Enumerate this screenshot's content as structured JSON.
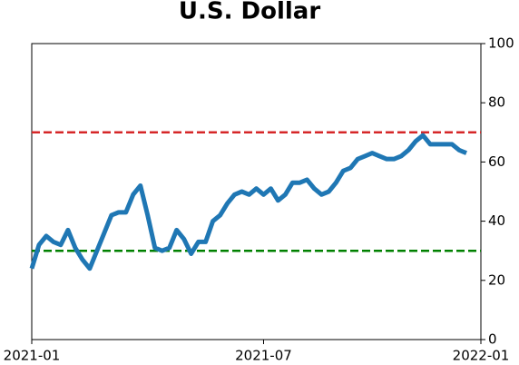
{
  "chart_data": {
    "type": "line",
    "title": "U.S. Dollar",
    "values": [
      24,
      32,
      35,
      33,
      32,
      37,
      31,
      27,
      24,
      30,
      36,
      42,
      43,
      43,
      49,
      52,
      42,
      31,
      30,
      31,
      37,
      34,
      29,
      33,
      33,
      40,
      42,
      46,
      49,
      50,
      49,
      51,
      49,
      51,
      47,
      49,
      53,
      53,
      54,
      51,
      49,
      50,
      53,
      57,
      58,
      61,
      62,
      63,
      62,
      61,
      61,
      62,
      64,
      67,
      69,
      66,
      66,
      66,
      66,
      64,
      63
    ],
    "color": "#1f77b4",
    "xlim": [
      0,
      62
    ],
    "xticks": [
      {
        "value": 0,
        "label": "2021-01"
      },
      {
        "value": 32,
        "label": "2021-07"
      },
      {
        "value": 62,
        "label": "2022-01"
      }
    ],
    "ylim": [
      0,
      100
    ],
    "yticks": [
      0,
      20,
      40,
      60,
      80,
      100
    ],
    "hlines": [
      {
        "value": 70,
        "color": "#d62728"
      },
      {
        "value": 30,
        "color": "#008000"
      }
    ]
  }
}
